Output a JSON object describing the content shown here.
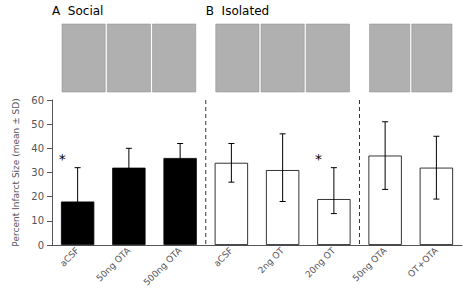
{
  "chart_data": {
    "type": "bar",
    "categories": [
      "aCSF",
      "50ng OTA",
      "500ng OTA",
      "aCSF",
      "2ng OT",
      "20ng OT",
      "50ng OTA",
      "OT+OTA"
    ],
    "values": [
      18,
      32,
      36,
      34,
      31,
      19,
      37,
      32
    ],
    "error_up": [
      14,
      8,
      6,
      8,
      15,
      13,
      14,
      13
    ],
    "error_down": [
      14,
      8,
      6,
      8,
      13,
      6,
      14,
      13
    ],
    "colors": [
      "black",
      "black",
      "black",
      "white",
      "white",
      "white",
      "white",
      "white"
    ],
    "ylabel": "Percent Infarct Size (mean ± SD)",
    "ylim": [
      0,
      60
    ],
    "yticks": [
      0,
      10,
      20,
      30,
      40,
      50,
      60
    ],
    "grid": false,
    "annotations": [
      {
        "text": "*",
        "index": 0
      },
      {
        "text": "*",
        "index": 5
      }
    ],
    "dividers": [
      2.5,
      5.5
    ],
    "sections": [
      {
        "label": "A  Social",
        "start": 0
      },
      {
        "label": "B  Isolated",
        "start": 3
      }
    ]
  }
}
